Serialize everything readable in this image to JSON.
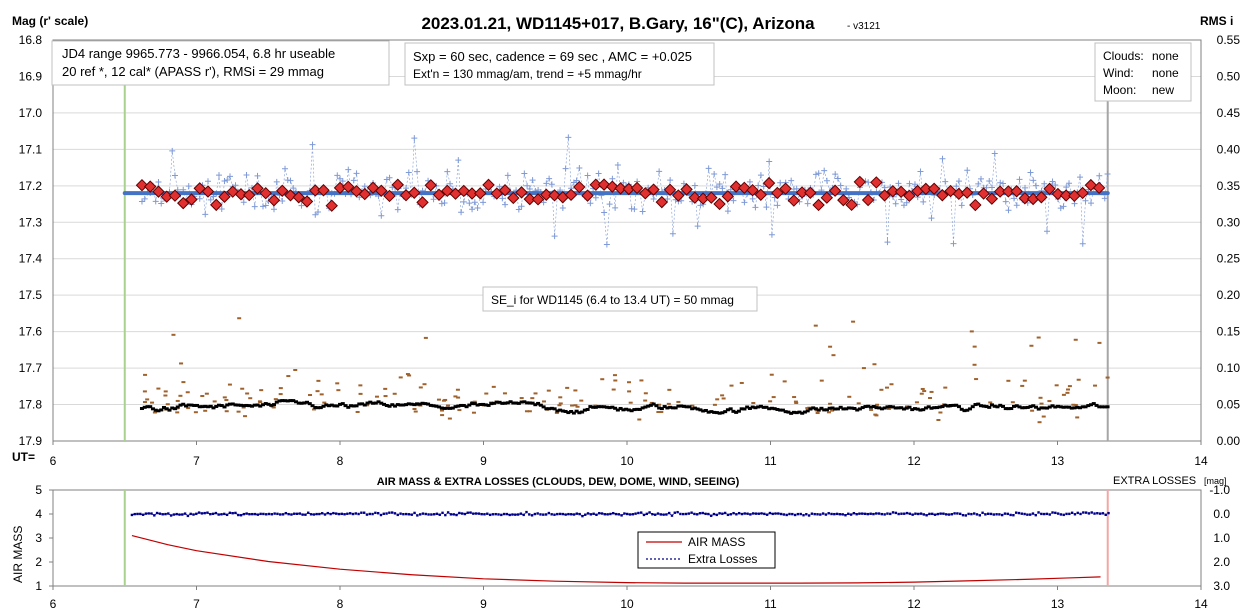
{
  "chart_data": [
    {
      "type": "scatter",
      "title": "2023.01.21, WD1145+017, B.Gary, 16\"(C), Arizona",
      "title_tag": "- v3121",
      "ylabel_left": "Mag (r' scale)",
      "ylabel_right": "RMS i",
      "xlabel": "UT=",
      "xlim": [
        6,
        14
      ],
      "ylim_left": [
        16.8,
        17.9
      ],
      "ylim_left_inverted": true,
      "ylim_right": [
        0.55,
        0.0
      ],
      "x_ticks": [
        "6",
        "7",
        "8",
        "9",
        "10",
        "11",
        "12",
        "13",
        "14"
      ],
      "y_ticks_left": [
        "16.8",
        "16.9",
        "17.0",
        "17.1",
        "17.2",
        "17.3",
        "17.4",
        "17.5",
        "17.6",
        "17.7",
        "17.8",
        "17.9"
      ],
      "y_ticks_right": [
        "0.55",
        "0.50",
        "0.45",
        "0.40",
        "0.35",
        "0.30",
        "0.25",
        "0.20",
        "0.15",
        "0.10",
        "0.05",
        "0.00"
      ],
      "grid": true,
      "annotations": {
        "box1": [
          "JD4 range 9965.773 - 9966.054, 6.8 hr useable",
          "20 ref *, 12 cal*  (APASS r'), RMSi = 29 mmag"
        ],
        "box2": [
          "Sxp = 60 sec, cadence = 69 sec , AMC = +0.025",
          "Ext'n = 130 mmag/am, trend = +5 mmag/hr"
        ],
        "box3": [
          {
            "label": "Clouds:",
            "value": "none"
          },
          {
            "label": "Wind:",
            "value": "none"
          },
          {
            "label": "Moon:",
            "value": "new"
          }
        ],
        "box4": "SE_i for WD1145 (6.4 to 13.4 UT) = 50 mmag"
      },
      "markers": {
        "start_ut": 6.5,
        "end_ut": 13.35
      },
      "fit_line": {
        "x": [
          6.5,
          13.35
        ],
        "y": [
          17.22,
          17.22
        ],
        "color": "#4472c4"
      },
      "series": [
        {
          "role": "raw-points",
          "color": "#7f9ad6",
          "x0": 6.62,
          "dx": 0.01917,
          "n": 352,
          "center": 17.215,
          "spread": 0.055
        },
        {
          "role": "binned-diamonds",
          "color": "#e03030",
          "x0": 6.62,
          "dx": 0.0575,
          "n": 117,
          "center": 17.22,
          "spread": 0.03
        },
        {
          "role": "rms-black",
          "color": "#000000",
          "x0": 6.62,
          "dx": 0.01917,
          "n": 352,
          "center": 0.045,
          "spread": 0.012
        },
        {
          "role": "rms-brown",
          "color": "#a0622d",
          "x0": 6.62,
          "dx": 0.01917,
          "n": 220,
          "center": 0.055,
          "spread": 0.04
        }
      ]
    },
    {
      "type": "line",
      "title": "AIR MASS & EXTRA LOSSES (CLOUDS, DEW, DOME, WIND, SEEING)",
      "ylabel_left": "AIR MASS",
      "ylabel_right_main": "EXTRA LOSSES",
      "ylabel_right_unit": "[mag]",
      "xlim": [
        6,
        14
      ],
      "ylim_left": [
        1,
        5
      ],
      "ylim_right": [
        -1.0,
        3.0
      ],
      "x_ticks": [
        "6",
        "7",
        "8",
        "9",
        "10",
        "11",
        "12",
        "13",
        "14"
      ],
      "y_ticks_left": [
        "5",
        "4",
        "3",
        "2",
        "1"
      ],
      "y_ticks_right": [
        "-1.0",
        "0.0",
        "1.0",
        "2.0",
        "3.0"
      ],
      "legend": {
        "position": "center",
        "entries": [
          "AIR MASS",
          "Extra Losses"
        ]
      },
      "markers": {
        "start_ut": 6.5,
        "end_ut": 13.35
      },
      "series": [
        {
          "name": "AIR MASS",
          "color": "#c00000",
          "x": [
            6.55,
            6.8,
            7.0,
            7.5,
            8.0,
            8.5,
            9.0,
            9.5,
            10.0,
            10.4,
            10.8,
            11.2,
            11.6,
            12.0,
            12.4,
            12.8,
            13.05,
            13.3
          ],
          "y": [
            3.1,
            2.72,
            2.47,
            2.02,
            1.7,
            1.47,
            1.3,
            1.2,
            1.14,
            1.12,
            1.12,
            1.12,
            1.13,
            1.16,
            1.22,
            1.28,
            1.33,
            1.38
          ]
        },
        {
          "name": "Extra Losses",
          "color": "#00008b",
          "x0": 6.55,
          "dx": 0.0195,
          "n": 350,
          "center": 0.0,
          "spread": 0.06
        }
      ]
    }
  ]
}
